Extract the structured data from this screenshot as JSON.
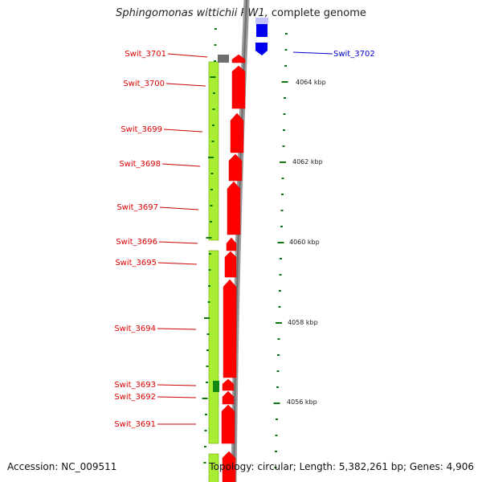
{
  "title_italic": "Sphingomonas wittichii RW1,",
  "title_rest": " complete genome",
  "accession": "Accession: NC_009511",
  "summary": "Topology: circular; Length: 5,382,261 bp; Genes: 4,906",
  "colors": {
    "reverse_gene": "#ff0000",
    "forward_gene": "#0000ff",
    "cds_bar": "#aaee33",
    "backbone": "#888888",
    "tick": "#117711"
  },
  "genes": [
    {
      "name": "Swit_3702",
      "strand": "forward"
    },
    {
      "name": "Swit_3701",
      "strand": "reverse"
    },
    {
      "name": "Swit_3700",
      "strand": "reverse"
    },
    {
      "name": "Swit_3699",
      "strand": "reverse"
    },
    {
      "name": "Swit_3698",
      "strand": "reverse"
    },
    {
      "name": "Swit_3697",
      "strand": "reverse"
    },
    {
      "name": "Swit_3696",
      "strand": "reverse"
    },
    {
      "name": "Swit_3695",
      "strand": "reverse"
    },
    {
      "name": "Swit_3694",
      "strand": "reverse"
    },
    {
      "name": "Swit_3693",
      "strand": "reverse"
    },
    {
      "name": "Swit_3692",
      "strand": "reverse"
    },
    {
      "name": "Swit_3691",
      "strand": "reverse"
    }
  ],
  "ruler_labels": [
    "4064 kbp",
    "4062 kbp",
    "4060 kbp",
    "4058 kbp",
    "4056 kbp"
  ]
}
